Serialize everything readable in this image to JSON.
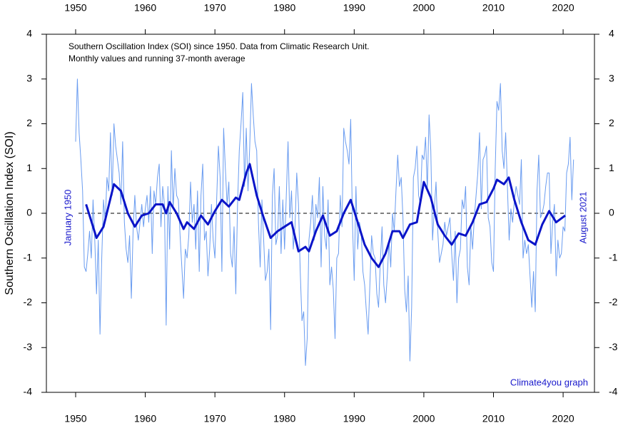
{
  "chart_data": {
    "type": "line",
    "title": "Southern Oscillation Index (SOI) since 1950. Data from Climatic Research Unit.",
    "subtitle": "Monthly values and running 37-month average",
    "y_label": "Southern Oscillation Index (SOI)",
    "annotations": [
      "January 1950",
      "August 2021",
      "Climate4you graph"
    ],
    "xlim": [
      1945.8,
      2024.5
    ],
    "xticks": [
      1950,
      1960,
      1970,
      1980,
      1990,
      2000,
      2010,
      2020
    ],
    "ylim": [
      -4,
      4
    ],
    "yticks": [
      -4,
      -3,
      -2,
      -1,
      0,
      1,
      2,
      3,
      4
    ],
    "reference_line": 0,
    "series": [
      {
        "color": "#6a9cf0",
        "width": 1,
        "x": [
          1950,
          1950.25,
          1950.5,
          1950.75,
          1951,
          1951.25,
          1951.5,
          1951.75,
          1952,
          1952.25,
          1952.5,
          1952.75,
          1953,
          1953.25,
          1953.5,
          1953.75,
          1954,
          1954.25,
          1954.5,
          1954.75,
          1955,
          1955.25,
          1955.5,
          1955.75,
          1956,
          1956.25,
          1956.5,
          1956.75,
          1957,
          1957.25,
          1957.5,
          1957.75,
          1958,
          1958.25,
          1958.5,
          1958.75,
          1959,
          1959.25,
          1959.5,
          1959.75,
          1960,
          1960.25,
          1960.5,
          1960.75,
          1961,
          1961.25,
          1961.5,
          1961.75,
          1962,
          1962.25,
          1962.5,
          1962.75,
          1963,
          1963.25,
          1963.5,
          1963.75,
          1964,
          1964.25,
          1964.5,
          1964.75,
          1965,
          1965.25,
          1965.5,
          1965.75,
          1966,
          1966.25,
          1966.5,
          1966.75,
          1967,
          1967.25,
          1967.5,
          1967.75,
          1968,
          1968.25,
          1968.5,
          1968.75,
          1969,
          1969.25,
          1969.5,
          1969.75,
          1970,
          1970.25,
          1970.5,
          1970.75,
          1971,
          1971.25,
          1971.5,
          1971.75,
          1972,
          1972.25,
          1972.5,
          1972.75,
          1973,
          1973.25,
          1973.5,
          1973.75,
          1974,
          1974.25,
          1974.5,
          1974.75,
          1975,
          1975.25,
          1975.5,
          1975.75,
          1976,
          1976.25,
          1976.5,
          1976.75,
          1977,
          1977.25,
          1977.5,
          1977.75,
          1978,
          1978.25,
          1978.5,
          1978.75,
          1979,
          1979.25,
          1979.5,
          1979.75,
          1980,
          1980.25,
          1980.5,
          1980.75,
          1981,
          1981.25,
          1981.5,
          1981.75,
          1982,
          1982.25,
          1982.5,
          1982.75,
          1983,
          1983.25,
          1983.5,
          1983.75,
          1984,
          1984.25,
          1984.5,
          1984.75,
          1985,
          1985.25,
          1985.5,
          1985.75,
          1986,
          1986.25,
          1986.5,
          1986.75,
          1987,
          1987.25,
          1987.5,
          1987.75,
          1988,
          1988.25,
          1988.5,
          1988.75,
          1989,
          1989.25,
          1989.5,
          1989.75,
          1990,
          1990.25,
          1990.5,
          1990.75,
          1991,
          1991.25,
          1991.5,
          1991.75,
          1992,
          1992.25,
          1992.5,
          1992.75,
          1993,
          1993.25,
          1993.5,
          1993.75,
          1994,
          1994.25,
          1994.5,
          1994.75,
          1995,
          1995.25,
          1995.5,
          1995.75,
          1996,
          1996.25,
          1996.5,
          1996.75,
          1997,
          1997.25,
          1997.5,
          1997.75,
          1998,
          1998.25,
          1998.5,
          1998.75,
          1999,
          1999.25,
          1999.5,
          1999.75,
          2000,
          2000.25,
          2000.5,
          2000.75,
          2001,
          2001.25,
          2001.5,
          2001.75,
          2002,
          2002.25,
          2002.5,
          2002.75,
          2003,
          2003.25,
          2003.5,
          2003.75,
          2004,
          2004.25,
          2004.5,
          2004.75,
          2005,
          2005.25,
          2005.5,
          2005.75,
          2006,
          2006.25,
          2006.5,
          2006.75,
          2007,
          2007.25,
          2007.5,
          2007.75,
          2008,
          2008.25,
          2008.5,
          2008.75,
          2009,
          2009.25,
          2009.5,
          2009.75,
          2010,
          2010.25,
          2010.5,
          2010.75,
          2011,
          2011.25,
          2011.5,
          2011.75,
          2012,
          2012.25,
          2012.5,
          2012.75,
          2013,
          2013.25,
          2013.5,
          2013.75,
          2014,
          2014.25,
          2014.5,
          2014.75,
          2015,
          2015.25,
          2015.5,
          2015.75,
          2016,
          2016.25,
          2016.5,
          2016.75,
          2017,
          2017.25,
          2017.5,
          2017.75,
          2018,
          2018.25,
          2018.5,
          2018.75,
          2019,
          2019.25,
          2019.5,
          2019.75,
          2020,
          2020.25,
          2020.5,
          2020.75,
          2021,
          2021.25,
          2021.5
        ],
        "values": [
          1.6,
          3.0,
          1.8,
          1.2,
          0.5,
          -1.2,
          -1.3,
          -0.9,
          -0.4,
          -1.0,
          0.3,
          -0.6,
          -1.8,
          -0.6,
          -2.7,
          -1.0,
          0.3,
          -0.2,
          0.8,
          0.5,
          1.8,
          0.4,
          2.0,
          1.5,
          1.2,
          0.9,
          0.2,
          1.6,
          -0.2,
          -0.8,
          -1.1,
          -0.5,
          -1.9,
          -0.4,
          0.4,
          -0.3,
          -0.6,
          -0.2,
          0.2,
          -0.3,
          0.1,
          0.4,
          -0.2,
          0.6,
          -0.9,
          0.5,
          0.2,
          0.8,
          1.1,
          -0.3,
          0.6,
          0.2,
          -2.5,
          0.6,
          -0.8,
          1.4,
          0.1,
          1.0,
          0.4,
          0.3,
          -0.5,
          -1.2,
          -1.9,
          -0.8,
          -1.0,
          -0.5,
          0.7,
          -0.2,
          0.2,
          -0.8,
          0.5,
          -1.3,
          0.4,
          1.1,
          -0.6,
          -0.4,
          -1.4,
          -0.8,
          0.2,
          -0.6,
          -1.0,
          0.3,
          1.5,
          0.8,
          -1.3,
          1.9,
          1.0,
          0.2,
          0.7,
          -0.9,
          -1.2,
          -0.3,
          -1.8,
          0.2,
          1.4,
          2.0,
          2.7,
          0.6,
          1.9,
          0.5,
          1.5,
          2.9,
          2.2,
          1.6,
          1.4,
          -0.2,
          -1.2,
          0.3,
          -0.6,
          -1.5,
          -1.3,
          -0.8,
          -2.6,
          0.4,
          1.0,
          -0.7,
          -0.5,
          0.6,
          -0.9,
          0.3,
          -0.8,
          0.4,
          1.6,
          -0.1,
          0.5,
          -0.8,
          -0.3,
          0.9,
          0.2,
          -1.3,
          -2.4,
          -2.2,
          -3.4,
          -2.8,
          -0.6,
          -0.2,
          0.4,
          -0.6,
          0.2,
          -0.1,
          0.8,
          -1.2,
          0.6,
          -0.5,
          -0.8,
          0.3,
          -1.6,
          -1.2,
          -1.7,
          -2.8,
          -1.0,
          -0.9,
          0.4,
          -0.3,
          1.9,
          1.6,
          1.4,
          1.1,
          2.1,
          -0.2,
          -1.5,
          0.6,
          -0.8,
          -0.2,
          -0.4,
          -1.3,
          -1.6,
          -2.2,
          -2.7,
          -1.6,
          -0.5,
          -0.9,
          -1.0,
          -1.8,
          -2.1,
          -1.1,
          -0.3,
          -1.6,
          -2.0,
          -1.4,
          -0.6,
          -1.2,
          0.0,
          -0.4,
          0.5,
          1.3,
          0.6,
          0.8,
          -0.1,
          -1.7,
          -2.2,
          -1.4,
          -3.3,
          -2.1,
          0.8,
          1.0,
          1.5,
          0.4,
          0.2,
          1.3,
          1.2,
          1.7,
          0.5,
          2.2,
          1.4,
          -0.6,
          0.1,
          0.7,
          -0.4,
          -1.1,
          -0.9,
          -0.7,
          -0.2,
          -0.5,
          -0.3,
          -0.1,
          -0.9,
          -1.5,
          -0.4,
          -2.0,
          -1.0,
          -0.8,
          0.3,
          0.1,
          0.6,
          -1.2,
          -1.6,
          -0.3,
          -0.8,
          -0.1,
          0.4,
          0.9,
          1.8,
          0.1,
          1.2,
          1.3,
          1.5,
          -0.1,
          -0.3,
          -1.1,
          -1.3,
          1.0,
          2.5,
          2.3,
          2.9,
          1.4,
          1.0,
          1.8,
          0.6,
          -0.6,
          0.1,
          -0.2,
          0.3,
          0.6,
          0.4,
          0.2,
          1.2,
          -1.0,
          -0.6,
          -0.9,
          -0.7,
          -1.4,
          -2.1,
          -1.3,
          -2.2,
          0.5,
          1.3,
          -0.1,
          0.0,
          0.2,
          0.6,
          0.9,
          0.9,
          -0.9,
          -0.2,
          0.2,
          -1.4,
          -0.6,
          -1.0,
          -0.9,
          -0.3,
          -0.4,
          0.9,
          1.1,
          1.7,
          0.3,
          1.2
        ]
      },
      {
        "color": "#0a14c8",
        "width": 3,
        "x": [
          1951.5,
          1953,
          1954,
          1955.5,
          1956.5,
          1957.5,
          1958.5,
          1959.5,
          1960.5,
          1961.5,
          1962.5,
          1963,
          1963.5,
          1964.5,
          1965.5,
          1966,
          1967,
          1968,
          1969,
          1970,
          1971,
          1972,
          1973,
          1973.5,
          1974.5,
          1975,
          1976,
          1977,
          1978,
          1979,
          1980,
          1981,
          1982,
          1983,
          1983.5,
          1984.5,
          1985.5,
          1986.5,
          1987.5,
          1988.5,
          1989.5,
          1990.5,
          1991.5,
          1992.5,
          1993.5,
          1994.5,
          1995.5,
          1996.5,
          1997,
          1998,
          1999,
          2000,
          2001,
          2002,
          2003,
          2004,
          2005,
          2006,
          2007,
          2008,
          2009,
          2010,
          2010.5,
          2011.5,
          2012.2,
          2013,
          2014,
          2015,
          2016,
          2017,
          2018,
          2019,
          2020.3
        ],
        "values": [
          0.2,
          -0.55,
          -0.3,
          0.65,
          0.5,
          0,
          -0.3,
          -0.05,
          0.0,
          0.2,
          0.2,
          0,
          0.25,
          0,
          -0.35,
          -0.2,
          -0.35,
          -0.05,
          -0.25,
          0.05,
          0.3,
          0.15,
          0.35,
          0.3,
          0.9,
          1.1,
          0.4,
          -0.1,
          -0.55,
          -0.4,
          -0.3,
          -0.2,
          -0.85,
          -0.75,
          -0.85,
          -0.4,
          -0.05,
          -0.5,
          -0.4,
          0.0,
          0.3,
          -0.2,
          -0.7,
          -1.0,
          -1.2,
          -0.9,
          -0.4,
          -0.4,
          -0.55,
          -0.25,
          -0.2,
          0.7,
          0.35,
          -0.25,
          -0.5,
          -0.7,
          -0.45,
          -0.5,
          -0.2,
          0.2,
          0.25,
          0.55,
          0.75,
          0.65,
          0.8,
          0.3,
          -0.2,
          -0.6,
          -0.7,
          -0.25,
          0.05,
          -0.2,
          -0.05
        ]
      }
    ]
  }
}
